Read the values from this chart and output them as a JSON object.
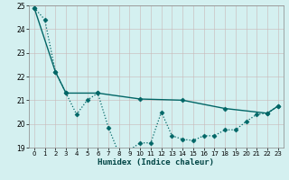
{
  "xlabel": "Humidex (Indice chaleur)",
  "x": [
    0,
    1,
    2,
    3,
    4,
    5,
    6,
    7,
    8,
    9,
    10,
    11,
    12,
    13,
    14,
    15,
    16,
    17,
    18,
    19,
    20,
    21,
    22,
    23
  ],
  "line_zigzag_y": [
    24.9,
    24.4,
    22.2,
    21.3,
    20.4,
    21.0,
    21.3,
    19.85,
    18.75,
    18.9,
    19.2,
    19.2,
    20.5,
    19.5,
    19.35,
    19.3,
    19.5,
    19.5,
    19.75,
    19.75,
    20.1,
    20.4,
    20.45,
    20.75
  ],
  "line_solid_x": [
    0,
    2,
    3,
    6,
    10,
    14,
    18,
    22,
    23
  ],
  "line_solid_y": [
    24.9,
    22.2,
    21.3,
    21.3,
    21.05,
    21.0,
    20.65,
    20.45,
    20.75
  ],
  "line_color": "#006666",
  "bg_color": "#d4f0f0",
  "grid_color": "#c8b8b8",
  "ylim": [
    19,
    25
  ],
  "xlim": [
    -0.5,
    23.5
  ],
  "yticks": [
    19,
    20,
    21,
    22,
    23,
    24,
    25
  ],
  "xticks": [
    0,
    1,
    2,
    3,
    4,
    5,
    6,
    7,
    8,
    9,
    10,
    11,
    12,
    13,
    14,
    15,
    16,
    17,
    18,
    19,
    20,
    21,
    22,
    23
  ],
  "markersize": 2.5
}
